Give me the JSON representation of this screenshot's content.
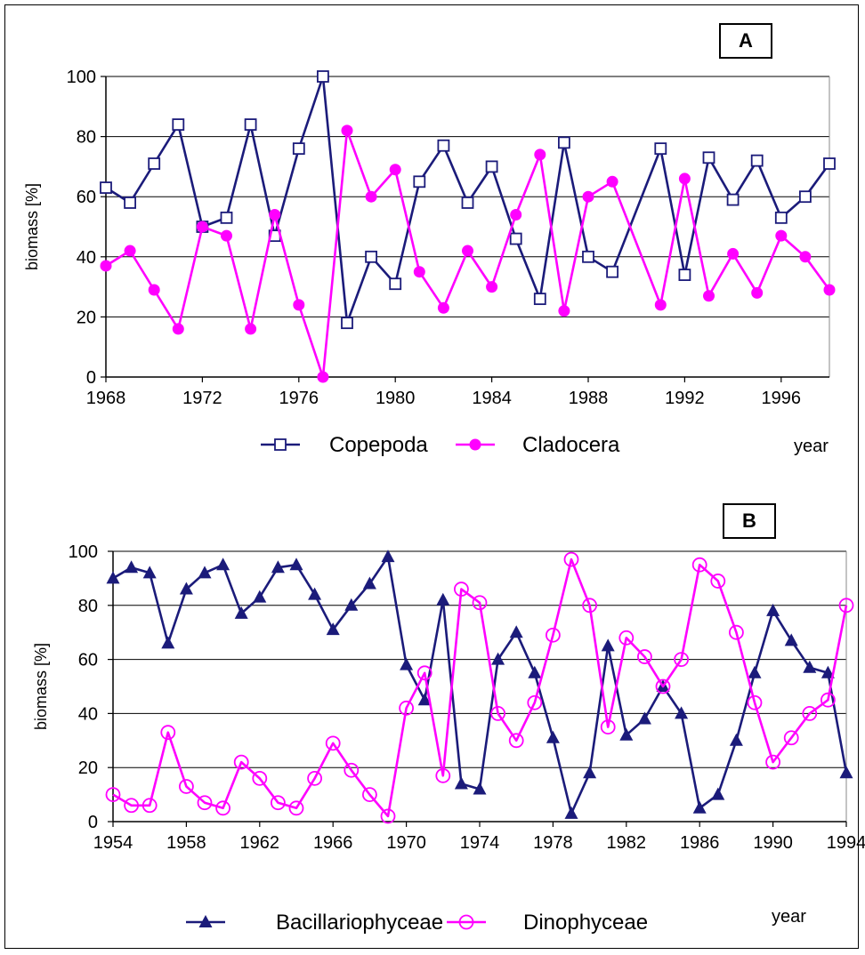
{
  "chart_data": [
    {
      "type": "line",
      "panel_label": "A",
      "xlabel": "year",
      "ylabel": "biomass [%]",
      "ylim": [
        0,
        100
      ],
      "xlim": [
        1968,
        1998
      ],
      "xticks": [
        1968,
        1972,
        1976,
        1980,
        1984,
        1988,
        1992,
        1996
      ],
      "yticks": [
        0,
        20,
        40,
        60,
        80,
        100
      ],
      "grid": "horizontal",
      "legend": "bottom",
      "series": [
        {
          "name": "Copepoda",
          "color": "#1b1b7a",
          "marker": "open-square",
          "x": [
            1968,
            1969,
            1970,
            1971,
            1972,
            1973,
            1974,
            1975,
            1976,
            1977,
            1978,
            1979,
            1980,
            1981,
            1982,
            1983,
            1984,
            1985,
            1986,
            1987,
            1988,
            1989,
            1991,
            1992,
            1993,
            1994,
            1995,
            1996,
            1997,
            1998
          ],
          "y": [
            63,
            58,
            71,
            84,
            50,
            53,
            84,
            47,
            76,
            100,
            18,
            40,
            31,
            65,
            77,
            58,
            70,
            46,
            26,
            78,
            40,
            35,
            76,
            34,
            73,
            59,
            72,
            53,
            60,
            71
          ]
        },
        {
          "name": "Cladocera",
          "color": "#ff00ff",
          "marker": "filled-circle",
          "x": [
            1968,
            1969,
            1970,
            1971,
            1972,
            1973,
            1974,
            1975,
            1976,
            1977,
            1978,
            1979,
            1980,
            1981,
            1982,
            1983,
            1984,
            1985,
            1986,
            1987,
            1988,
            1989,
            1991,
            1992,
            1993,
            1994,
            1995,
            1996,
            1997,
            1998
          ],
          "y": [
            37,
            42,
            29,
            16,
            50,
            47,
            16,
            54,
            24,
            0,
            82,
            60,
            69,
            35,
            23,
            42,
            30,
            54,
            74,
            22,
            60,
            65,
            24,
            66,
            27,
            41,
            28,
            47,
            40,
            29
          ]
        }
      ]
    },
    {
      "type": "line",
      "panel_label": "B",
      "xlabel": "year",
      "ylabel": "biomass [%]",
      "ylim": [
        0,
        100
      ],
      "xlim": [
        1954,
        1994
      ],
      "xticks": [
        1954,
        1958,
        1962,
        1966,
        1970,
        1974,
        1978,
        1982,
        1986,
        1990,
        1994
      ],
      "yticks": [
        0,
        20,
        40,
        60,
        80,
        100
      ],
      "grid": "horizontal",
      "legend": "bottom",
      "series": [
        {
          "name": "Bacillariophyceae",
          "color": "#1b1b7a",
          "marker": "filled-triangle",
          "x": [
            1954,
            1955,
            1956,
            1957,
            1958,
            1959,
            1960,
            1961,
            1962,
            1963,
            1964,
            1965,
            1966,
            1967,
            1968,
            1969,
            1970,
            1971,
            1972,
            1973,
            1974,
            1975,
            1976,
            1977,
            1978,
            1979,
            1980,
            1981,
            1982,
            1983,
            1984,
            1985,
            1986,
            1987,
            1988,
            1989,
            1990,
            1991,
            1992,
            1993,
            1994
          ],
          "y": [
            90,
            94,
            92,
            66,
            86,
            92,
            95,
            77,
            83,
            94,
            95,
            84,
            71,
            80,
            88,
            98,
            58,
            45,
            82,
            14,
            12,
            60,
            70,
            55,
            31,
            3,
            18,
            65,
            32,
            38,
            50,
            40,
            5,
            10,
            30,
            55,
            78,
            67,
            57,
            55,
            18
          ]
        },
        {
          "name": "Dinophyceae",
          "color": "#ff00ff",
          "marker": "open-circle",
          "x": [
            1954,
            1955,
            1956,
            1957,
            1958,
            1959,
            1960,
            1961,
            1962,
            1963,
            1964,
            1965,
            1966,
            1967,
            1968,
            1969,
            1970,
            1971,
            1972,
            1973,
            1974,
            1975,
            1976,
            1977,
            1978,
            1979,
            1980,
            1981,
            1982,
            1983,
            1984,
            1985,
            1986,
            1987,
            1988,
            1989,
            1990,
            1991,
            1992,
            1993,
            1994
          ],
          "y": [
            10,
            6,
            6,
            33,
            13,
            7,
            5,
            22,
            16,
            7,
            5,
            16,
            29,
            19,
            10,
            2,
            42,
            55,
            17,
            86,
            81,
            40,
            30,
            44,
            69,
            97,
            80,
            35,
            68,
            61,
            50,
            60,
            95,
            89,
            70,
            44,
            22,
            31,
            40,
            45,
            80
          ]
        }
      ]
    }
  ]
}
